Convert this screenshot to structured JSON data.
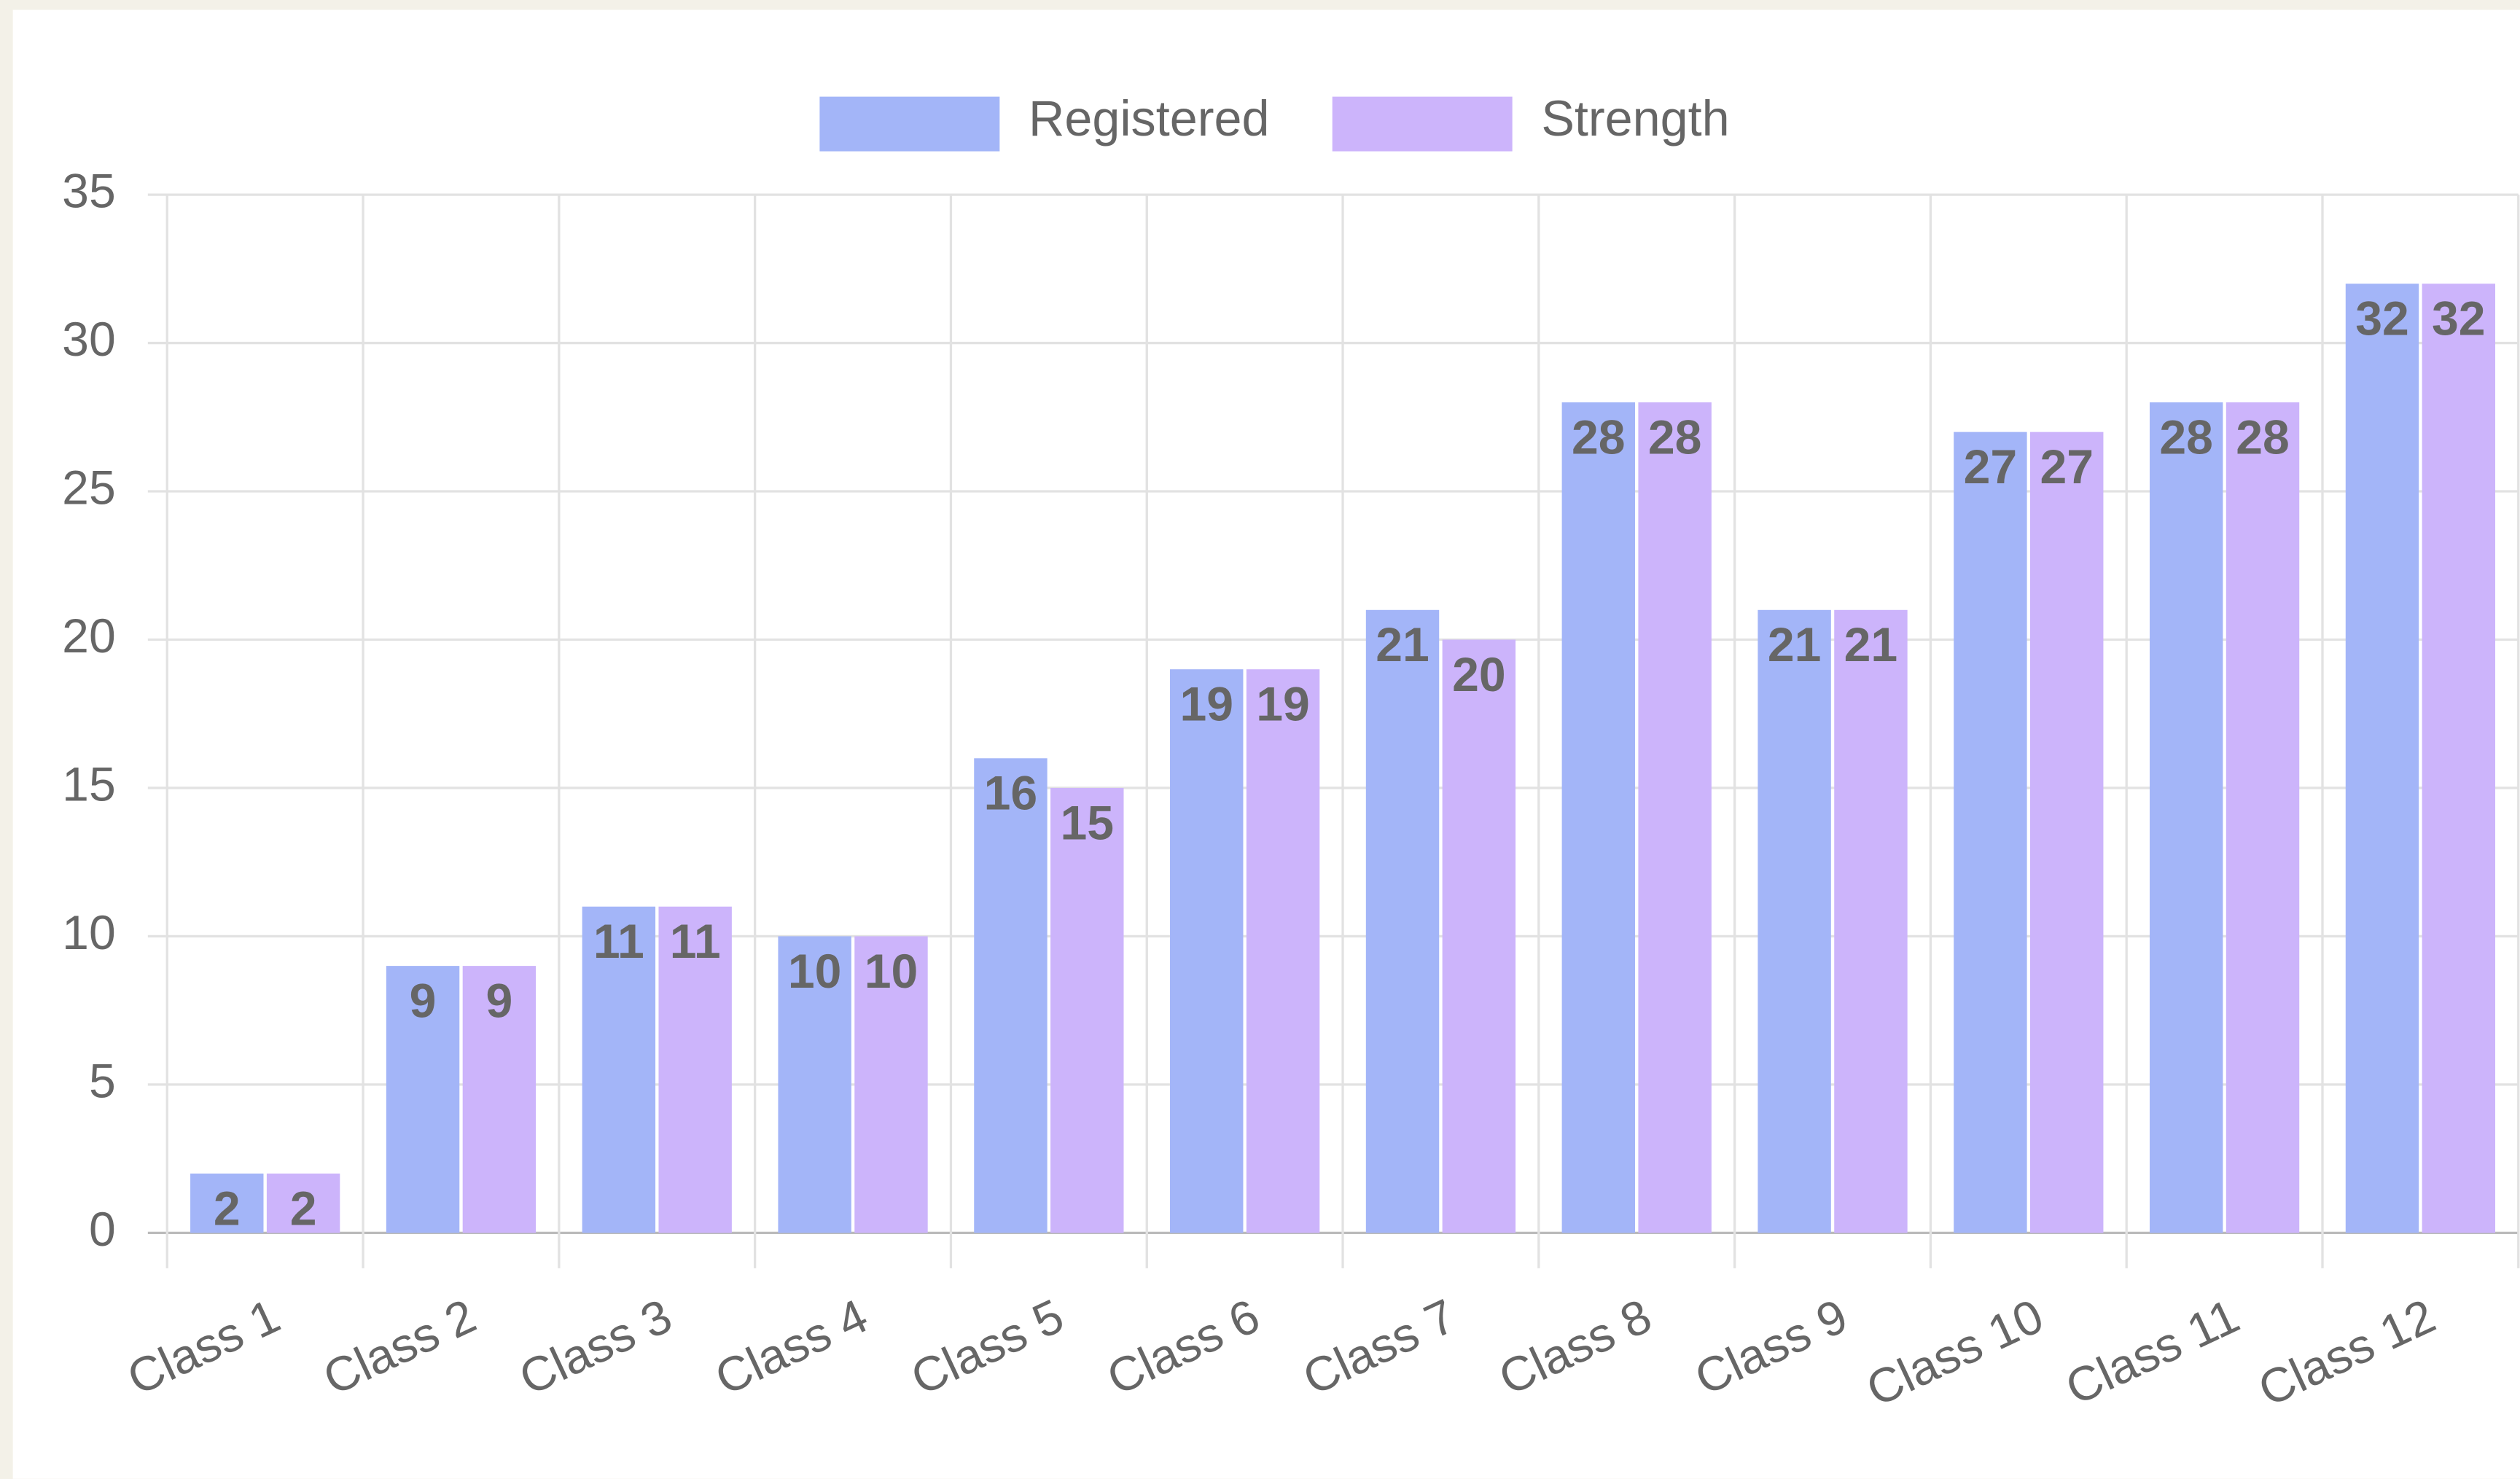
{
  "chart_data": {
    "type": "bar",
    "categories": [
      "Class 1",
      "Class 2",
      "Class 3",
      "Class 4",
      "Class 5",
      "Class 6",
      "Class 7",
      "Class 8",
      "Class 9",
      "Class 10",
      "Class 11",
      "Class 12"
    ],
    "series": [
      {
        "name": "Registered",
        "color": "#a3b5f8",
        "values": [
          2,
          9,
          11,
          10,
          16,
          19,
          21,
          28,
          21,
          27,
          28,
          32
        ]
      },
      {
        "name": "Strength",
        "color": "#ccb4fb",
        "values": [
          2,
          9,
          11,
          10,
          15,
          19,
          20,
          28,
          21,
          27,
          28,
          32
        ]
      }
    ],
    "ylim": [
      0,
      35
    ],
    "yticks": [
      0,
      5,
      10,
      15,
      20,
      25,
      30,
      35
    ],
    "grid": true,
    "legend": "top"
  }
}
